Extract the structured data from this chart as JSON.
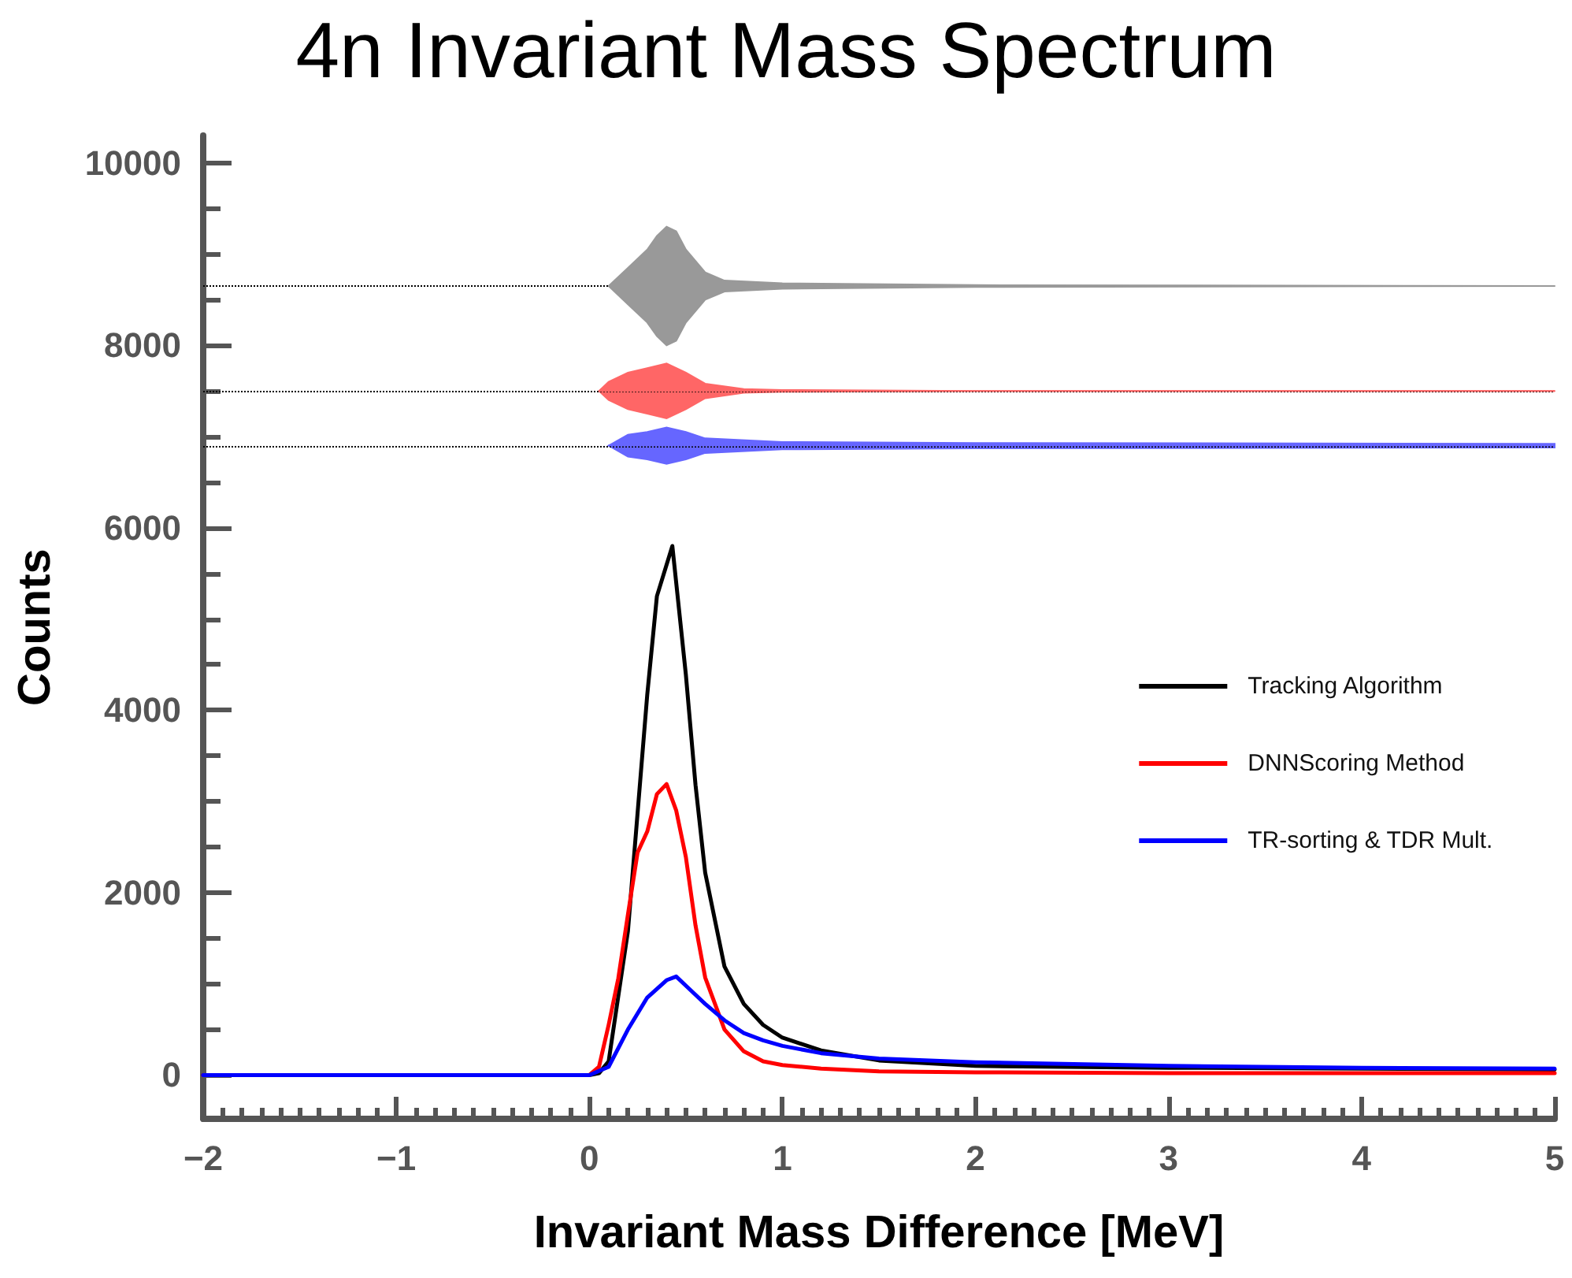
{
  "chart_data": {
    "type": "line",
    "title": "4n Invariant Mass Spectrum",
    "xlabel": "Invariant Mass Difference [MeV]",
    "ylabel": "Counts",
    "xlim": [
      -2,
      5
    ],
    "xticks": [
      {
        "value": -2,
        "label": "−2"
      },
      {
        "value": -1,
        "label": "−1"
      },
      0,
      1,
      2,
      3,
      4,
      5
    ],
    "ylim": [
      -480,
      10300
    ],
    "yticks": [
      0,
      2000,
      4000,
      6000,
      8000,
      10000
    ],
    "grid": false,
    "legend": "right",
    "marker": "none",
    "line_style": "solid",
    "ref_lines": [
      {
        "axis": "y",
        "value": 8650,
        "color": "#000000",
        "line_style": "dotted"
      },
      {
        "axis": "y",
        "value": 7500,
        "color": "#000000",
        "line_style": "dotted"
      },
      {
        "axis": "y",
        "value": 6900,
        "color": "#000000",
        "line_style": "dotted"
      }
    ],
    "series": [
      {
        "name": "Tracking Algorithm",
        "color": "#000000",
        "x": [
          -2,
          -0.5,
          0,
          0.05,
          0.1,
          0.2,
          0.3,
          0.35,
          0.43,
          0.5,
          0.55,
          0.6,
          0.7,
          0.8,
          0.9,
          1.0,
          1.2,
          1.5,
          2,
          3,
          4,
          5
        ],
        "values": [
          0,
          0,
          0,
          20,
          150,
          1580,
          4170,
          5250,
          5800,
          4390,
          3180,
          2220,
          1190,
          780,
          550,
          410,
          270,
          160,
          100,
          80,
          70,
          60
        ]
      },
      {
        "name": "DNNScoring Method",
        "color": "#ff0000",
        "x": [
          -2,
          -0.5,
          0,
          0.05,
          0.1,
          0.15,
          0.2,
          0.25,
          0.3,
          0.35,
          0.4,
          0.45,
          0.5,
          0.55,
          0.6,
          0.7,
          0.8,
          0.9,
          1.0,
          1.2,
          1.5,
          2,
          3,
          4,
          5
        ],
        "values": [
          0,
          0,
          0,
          90,
          550,
          1060,
          1760,
          2440,
          2670,
          3080,
          3190,
          2900,
          2390,
          1640,
          1070,
          500,
          260,
          150,
          110,
          70,
          40,
          30,
          20,
          20,
          20
        ]
      },
      {
        "name": "TR-sorting & TDR Mult.",
        "color": "#0000ff",
        "x": [
          -2,
          -0.5,
          0,
          0.1,
          0.2,
          0.3,
          0.4,
          0.45,
          0.5,
          0.6,
          0.7,
          0.8,
          0.9,
          1.0,
          1.2,
          1.5,
          2,
          3,
          4,
          5
        ],
        "values": [
          0,
          0,
          0,
          90,
          500,
          850,
          1040,
          1080,
          980,
          780,
          600,
          460,
          380,
          320,
          240,
          180,
          140,
          100,
          80,
          70
        ]
      },
      {
        "color": "#999999",
        "x": [
          0.1,
          0.2,
          0.3,
          0.35,
          0.4,
          0.45,
          0.5,
          0.6,
          0.7,
          1.0,
          2,
          5
        ],
        "values": [
          8650,
          8650,
          8650,
          8650,
          8650,
          8650,
          8650,
          8650,
          8650,
          8650,
          8650,
          8650
        ],
        "lower": [
          8650,
          8450,
          8250,
          8100,
          8000,
          8050,
          8250,
          8500,
          8590,
          8620,
          8640,
          8650
        ],
        "upper": [
          8650,
          8850,
          9050,
          9200,
          9300,
          9250,
          9050,
          8800,
          8710,
          8680,
          8660,
          8650
        ]
      },
      {
        "color": "#ff6666",
        "x": [
          0.05,
          0.1,
          0.2,
          0.3,
          0.4,
          0.5,
          0.6,
          0.8,
          1.0,
          2,
          5
        ],
        "values": [
          7500,
          7500,
          7500,
          7500,
          7500,
          7500,
          7500,
          7500,
          7500,
          7500,
          7500
        ],
        "lower": [
          7500,
          7400,
          7300,
          7250,
          7200,
          7300,
          7420,
          7480,
          7490,
          7500,
          7500
        ],
        "upper": [
          7500,
          7600,
          7700,
          7750,
          7800,
          7700,
          7580,
          7520,
          7510,
          7500,
          7500
        ]
      },
      {
        "color": "#6666ff",
        "x": [
          0.1,
          0.2,
          0.3,
          0.4,
          0.5,
          0.6,
          1.0,
          2,
          5
        ],
        "values": [
          6900,
          6900,
          6900,
          6900,
          6900,
          6900,
          6900,
          6900,
          6900
        ],
        "lower": [
          6900,
          6780,
          6750,
          6700,
          6750,
          6820,
          6860,
          6870,
          6880
        ],
        "upper": [
          6900,
          7020,
          7050,
          7100,
          7050,
          6980,
          6940,
          6930,
          6920
        ]
      }
    ]
  }
}
